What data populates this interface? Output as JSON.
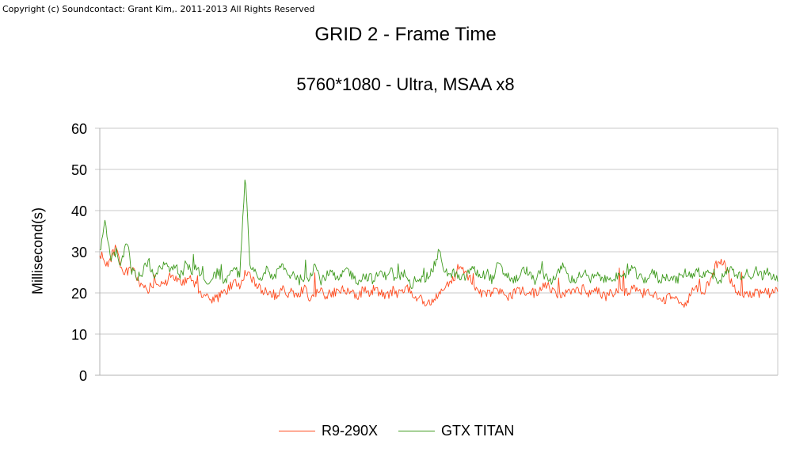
{
  "copyright": "Copyright (c) Soundcontact: Grant Kim,. 2011-2013 All Rights Reserved",
  "chart_data": {
    "type": "line",
    "title": "GRID 2 - Frame Time",
    "subtitle": "5760*1080 - Ultra, MSAA x8",
    "xlabel": "",
    "ylabel": "Millisecond(s)",
    "ylim": [
      0,
      60
    ],
    "yticks": [
      "0",
      "10",
      "20",
      "30",
      "40",
      "50",
      "60"
    ],
    "grid": true,
    "legend_position": "bottom",
    "samples": 660,
    "series": [
      {
        "name": "R9-290X",
        "color": "#ff4b1f",
        "values": [
          30,
          27,
          28,
          31,
          26,
          25,
          26,
          23,
          22,
          21,
          22,
          22,
          23,
          23,
          24,
          22,
          23,
          24,
          21,
          20,
          19,
          18,
          19,
          20,
          21,
          23,
          22,
          25,
          24,
          22,
          21,
          20,
          20,
          19,
          21,
          20,
          20,
          20,
          21,
          19,
          20,
          21,
          19,
          20,
          20,
          21,
          20,
          20,
          19,
          21,
          20,
          21,
          20,
          19,
          20,
          20,
          20,
          21,
          20,
          19,
          18,
          17,
          18,
          20,
          21,
          22,
          24,
          27,
          25,
          23,
          21,
          20,
          20,
          20,
          21,
          20,
          19,
          20,
          21,
          20,
          20,
          20,
          21,
          22,
          21,
          20,
          19,
          20,
          21,
          20,
          21,
          20,
          21,
          20,
          19,
          20,
          20,
          21,
          20,
          21,
          20,
          20,
          20,
          20,
          19,
          18,
          19,
          19,
          17,
          18,
          20,
          21,
          20,
          22,
          25,
          28,
          27,
          24,
          21,
          20,
          20,
          20,
          20,
          20,
          20,
          20,
          21
        ]
      },
      {
        "name": "GTX TITAN",
        "color": "#3f9b1f",
        "values": [
          30,
          38,
          28,
          30,
          27,
          33,
          25,
          24,
          25,
          28,
          24,
          26,
          27,
          25,
          27,
          24,
          27,
          25,
          26,
          24,
          23,
          24,
          25,
          23,
          24,
          26,
          24,
          49,
          26,
          25,
          23,
          26,
          24,
          25,
          27,
          24,
          25,
          23,
          24,
          24,
          27,
          23,
          24,
          25,
          23,
          24,
          26,
          24,
          23,
          24,
          24,
          23,
          25,
          24,
          26,
          23,
          24,
          25,
          22,
          24,
          23,
          24,
          26,
          30,
          26,
          24,
          25,
          23,
          24,
          26,
          25,
          24,
          25,
          23,
          27,
          25,
          24,
          23,
          24,
          26,
          24,
          23,
          25,
          24,
          23,
          24,
          27,
          24,
          23,
          24,
          25,
          23,
          24,
          24,
          23,
          24,
          24,
          23,
          25,
          26,
          24,
          23,
          24,
          25,
          23,
          24,
          24,
          23,
          24,
          25,
          24,
          26,
          24,
          25,
          24,
          23,
          24,
          26,
          25,
          24,
          25,
          24,
          26,
          24,
          25,
          24,
          23
        ]
      }
    ]
  }
}
